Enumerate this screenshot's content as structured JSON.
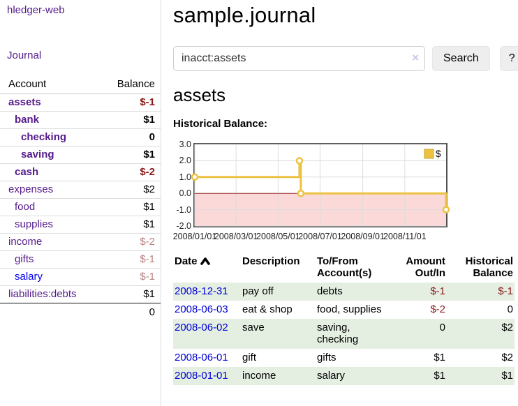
{
  "app": {
    "title": "hledger-web",
    "nav_journal": "Journal"
  },
  "sidebar": {
    "header": {
      "account": "Account",
      "balance": "Balance"
    },
    "accounts": [
      {
        "name": "assets",
        "balance": "$-1",
        "indent": 1,
        "bold": true,
        "neg": "strong",
        "link": "purple"
      },
      {
        "name": "bank",
        "balance": "$1",
        "indent": 2,
        "bold": true,
        "neg": "",
        "link": "purple"
      },
      {
        "name": "checking",
        "balance": "0",
        "indent": 3,
        "bold": true,
        "neg": "",
        "link": "purple"
      },
      {
        "name": "saving",
        "balance": "$1",
        "indent": 3,
        "bold": true,
        "neg": "",
        "link": "purple"
      },
      {
        "name": "cash",
        "balance": "$-2",
        "indent": 2,
        "bold": true,
        "neg": "strong",
        "link": "purple"
      },
      {
        "name": "expenses",
        "balance": "$2",
        "indent": 1,
        "bold": false,
        "neg": "",
        "link": "purple"
      },
      {
        "name": "food",
        "balance": "$1",
        "indent": 2,
        "bold": false,
        "neg": "",
        "link": "purple"
      },
      {
        "name": "supplies",
        "balance": "$1",
        "indent": 2,
        "bold": false,
        "neg": "",
        "link": "purple"
      },
      {
        "name": "income",
        "balance": "$-2",
        "indent": 1,
        "bold": false,
        "neg": "faded",
        "link": "purple"
      },
      {
        "name": "gifts",
        "balance": "$-1",
        "indent": 2,
        "bold": false,
        "neg": "faded",
        "link": "purple"
      },
      {
        "name": "salary",
        "balance": "$-1",
        "indent": 2,
        "bold": false,
        "neg": "faded",
        "link": "blue"
      },
      {
        "name": "liabilities:debts",
        "balance": "$1",
        "indent": 1,
        "bold": false,
        "neg": "",
        "link": "purple"
      }
    ],
    "total": "0"
  },
  "main": {
    "title": "sample.journal",
    "search": {
      "value": "inacct:assets",
      "clear_icon": "×",
      "button": "Search",
      "help": "?"
    },
    "account_heading": "assets",
    "chart_heading": "Historical Balance:"
  },
  "chart_data": {
    "type": "line",
    "style": "step-after",
    "title": "Historical Balance:",
    "legend_position": "top-right",
    "grid": true,
    "series": [
      {
        "name": "$",
        "color": "#edc240",
        "points": [
          {
            "date": "2008/01/01",
            "day": 0,
            "value": 1.0
          },
          {
            "date": "2008/06/01",
            "day": 152,
            "value": 2.0
          },
          {
            "date": "2008/06/03",
            "day": 154,
            "value": 0.0
          },
          {
            "date": "2008/12/31",
            "day": 365,
            "value": -1.0
          }
        ]
      }
    ],
    "x_ticks": [
      {
        "label": "2008/01/01",
        "day": 0
      },
      {
        "label": "2008/03/01",
        "day": 60
      },
      {
        "label": "2008/05/01",
        "day": 121
      },
      {
        "label": "2008/07/01",
        "day": 182
      },
      {
        "label": "2008/09/01",
        "day": 244
      },
      {
        "label": "2008/11/01",
        "day": 305
      }
    ],
    "y_ticks": [
      "3.0",
      "2.0",
      "1.0",
      "0.0",
      "-1.0",
      "-2.0"
    ],
    "x_range_days": [
      0,
      365
    ],
    "y_range": [
      -2,
      3
    ],
    "colors": {
      "grid": "#dcdcdc",
      "border": "#525252",
      "negative_region": "#fbd9d9",
      "zero_line": "#9e2b25",
      "marker_fill": "#ffffff",
      "legend_swatch_border": "#c9a42c"
    }
  },
  "table": {
    "headers": {
      "date": "Date",
      "description": "Description",
      "accounts": "To/From Account(s)",
      "amount": "Amount Out/In",
      "balance": "Historical Balance"
    },
    "rows": [
      {
        "date": "2008-12-31",
        "description": "pay off",
        "accounts": "debts",
        "amount": "$-1",
        "balance": "$-1",
        "amount_neg": true,
        "balance_neg": true
      },
      {
        "date": "2008-06-03",
        "description": "eat & shop",
        "accounts": "food, supplies",
        "amount": "$-2",
        "balance": "0",
        "amount_neg": true,
        "balance_neg": false
      },
      {
        "date": "2008-06-02",
        "description": "save",
        "accounts": "saving, checking",
        "amount": "0",
        "balance": "$2",
        "amount_neg": false,
        "balance_neg": false
      },
      {
        "date": "2008-06-01",
        "description": "gift",
        "accounts": "gifts",
        "amount": "$1",
        "balance": "$2",
        "amount_neg": false,
        "balance_neg": false
      },
      {
        "date": "2008-01-01",
        "description": "income",
        "accounts": "salary",
        "amount": "$1",
        "balance": "$1",
        "amount_neg": false,
        "balance_neg": false
      }
    ]
  }
}
